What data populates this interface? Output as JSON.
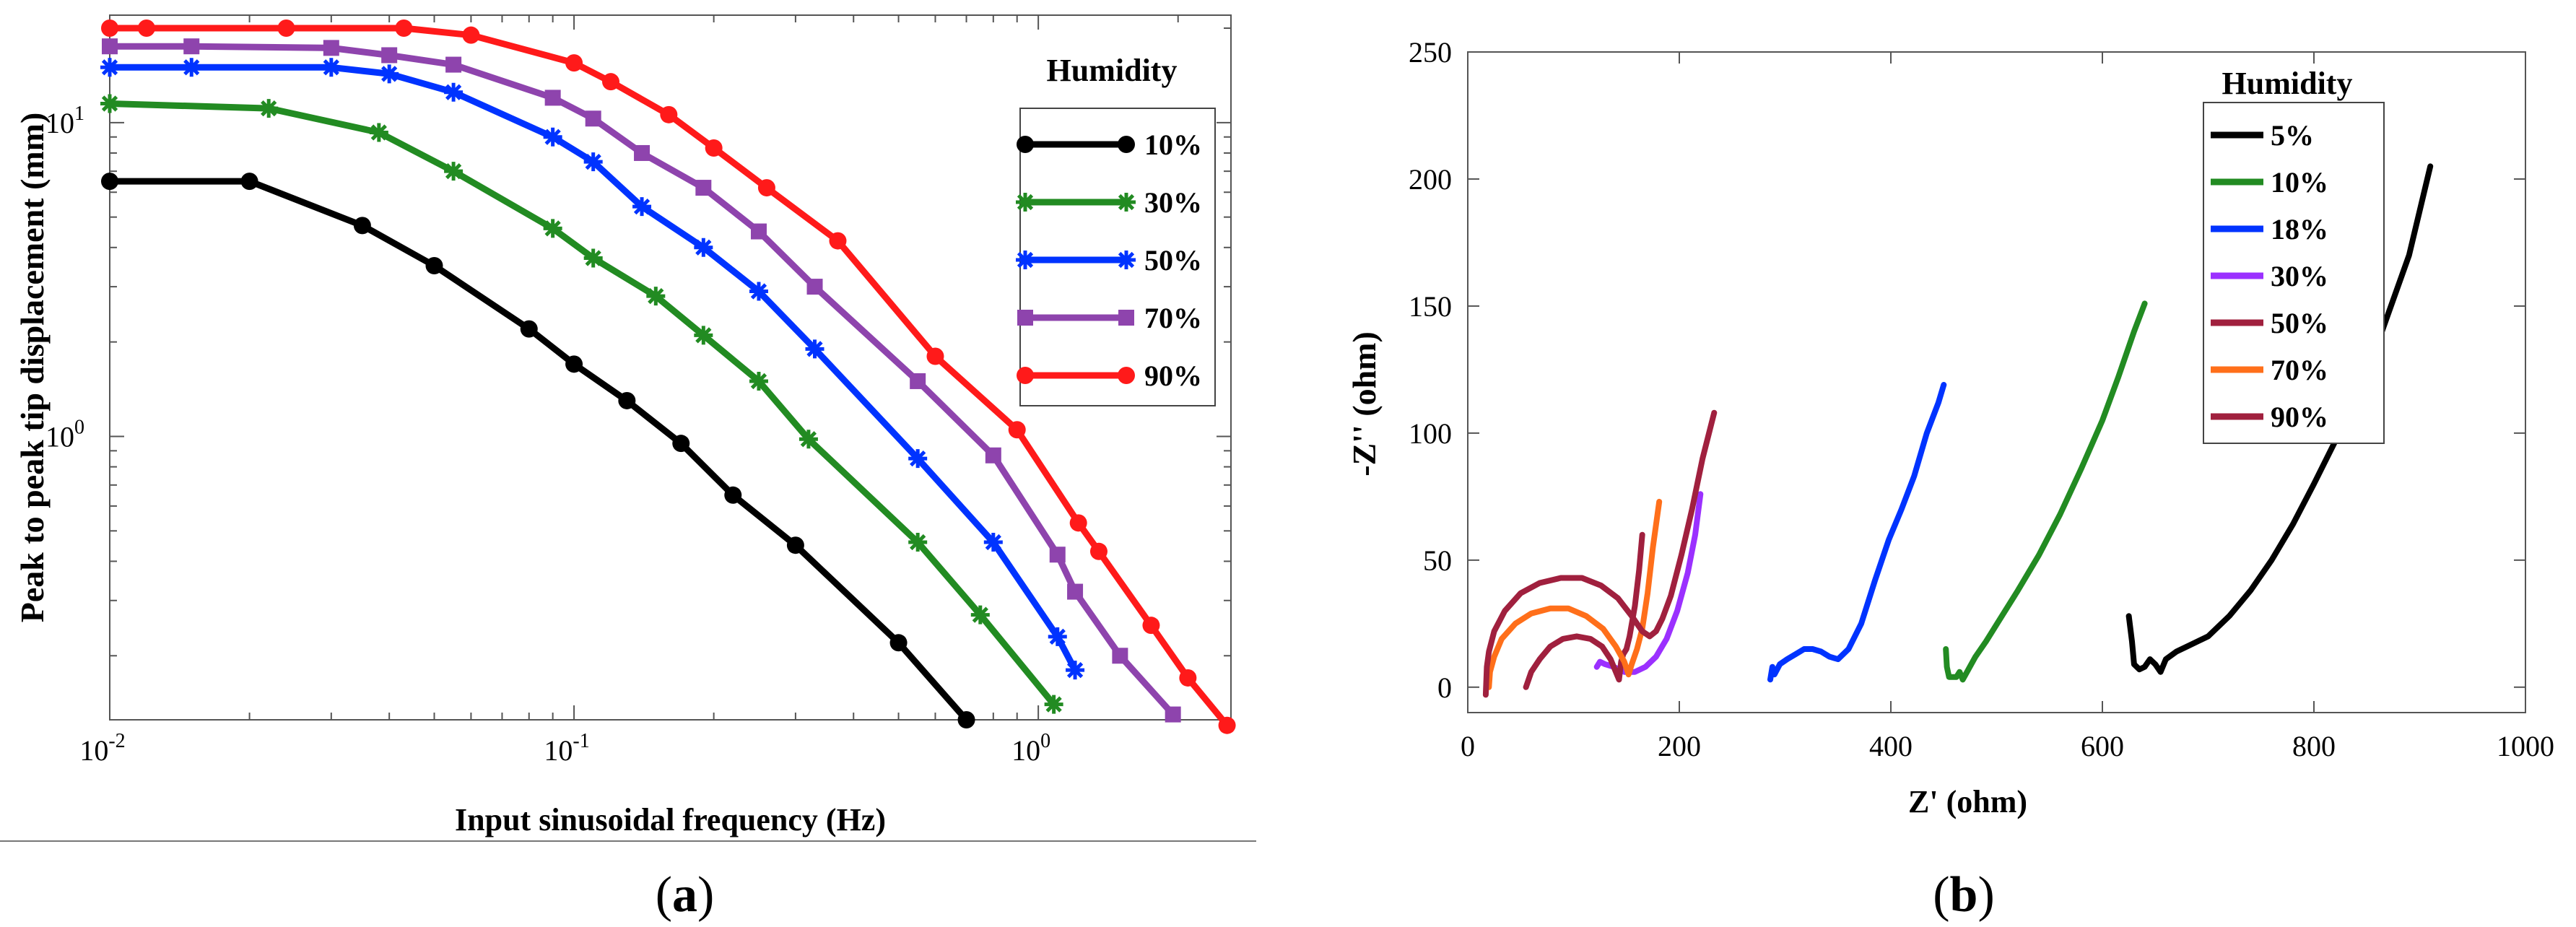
{
  "chart_data": [
    {
      "panel": "a",
      "type": "line",
      "scale": "log-log",
      "caption_open": "(",
      "caption_letter": "a",
      "caption_close": ")",
      "xlabel": "Input sinusoidal frequency (Hz)",
      "ylabel": "Peak to peak tip displacement (mm)",
      "xlim": [
        0.01,
        2.6
      ],
      "ylim": [
        0.125,
        22
      ],
      "x_ticks": [
        {
          "base": "10",
          "exp": "-2",
          "value": 0.01
        },
        {
          "base": "10",
          "exp": "-1",
          "value": 0.1
        },
        {
          "base": "10",
          "exp": "0",
          "value": 1
        }
      ],
      "y_ticks": [
        {
          "base": "10",
          "exp": "0",
          "value": 1
        },
        {
          "base": "10",
          "exp": "1",
          "value": 10
        }
      ],
      "legend_title": "Humidity",
      "series": [
        {
          "name": "10%",
          "color": "#000000",
          "marker": "dot",
          "x": [
            0.01,
            0.02,
            0.035,
            0.05,
            0.08,
            0.1,
            0.13,
            0.17,
            0.22,
            0.3,
            0.5,
            0.7
          ],
          "y": [
            6.5,
            6.5,
            4.7,
            3.5,
            2.2,
            1.7,
            1.3,
            0.95,
            0.65,
            0.45,
            0.22,
            0.125
          ]
        },
        {
          "name": "30%",
          "color": "#228b22",
          "marker": "star",
          "x": [
            0.01,
            0.022,
            0.038,
            0.055,
            0.09,
            0.11,
            0.15,
            0.19,
            0.25,
            0.32,
            0.55,
            0.75,
            1.08
          ],
          "y": [
            11.5,
            11.1,
            9.3,
            7.0,
            4.6,
            3.7,
            2.8,
            2.1,
            1.5,
            0.98,
            0.46,
            0.27,
            0.14
          ]
        },
        {
          "name": "50%",
          "color": "#0033ff",
          "marker": "star",
          "x": [
            0.01,
            0.015,
            0.03,
            0.04,
            0.055,
            0.09,
            0.11,
            0.14,
            0.19,
            0.25,
            0.33,
            0.55,
            0.8,
            1.1,
            1.2
          ],
          "y": [
            15.0,
            15.0,
            15.0,
            14.3,
            12.5,
            9.0,
            7.5,
            5.4,
            4.0,
            2.9,
            1.9,
            0.85,
            0.46,
            0.23,
            0.18
          ]
        },
        {
          "name": "70%",
          "color": "#8e44ad",
          "marker": "square",
          "x": [
            0.01,
            0.015,
            0.03,
            0.04,
            0.055,
            0.09,
            0.11,
            0.14,
            0.19,
            0.25,
            0.33,
            0.55,
            0.8,
            1.1,
            1.2,
            1.5,
            1.95
          ],
          "y": [
            17.5,
            17.5,
            17.3,
            16.4,
            15.3,
            12.0,
            10.3,
            8.0,
            6.2,
            4.5,
            3.0,
            1.5,
            0.87,
            0.42,
            0.32,
            0.2,
            0.13
          ]
        },
        {
          "name": "90%",
          "color": "#ff1a1a",
          "marker": "dot",
          "x": [
            0.01,
            0.012,
            0.024,
            0.043,
            0.06,
            0.1,
            0.12,
            0.16,
            0.2,
            0.26,
            0.37,
            0.6,
            0.9,
            1.22,
            1.35,
            1.75,
            2.1,
            2.55
          ],
          "y": [
            20.0,
            20.0,
            20.0,
            20.0,
            19.0,
            15.5,
            13.5,
            10.6,
            8.3,
            6.2,
            4.2,
            1.8,
            1.05,
            0.53,
            0.43,
            0.25,
            0.17,
            0.12
          ]
        }
      ]
    },
    {
      "panel": "b",
      "type": "line",
      "caption_open": "(",
      "caption_letter": "b",
      "caption_close": ")",
      "xlabel": "Z' (ohm)",
      "ylabel": "-Z'' (ohm)",
      "xlim": [
        0,
        1000
      ],
      "ylim": [
        -10,
        250
      ],
      "x_ticks": [
        0,
        200,
        400,
        600,
        800,
        1000
      ],
      "y_ticks": [
        0,
        50,
        100,
        150,
        200,
        250
      ],
      "legend_title": "Humidity",
      "series": [
        {
          "name": "5%",
          "color": "#000000",
          "x": [
            625,
            628,
            630,
            635,
            640,
            645,
            650,
            655,
            660,
            670,
            680,
            700,
            720,
            740,
            760,
            780,
            800,
            830,
            860,
            890,
            910
          ],
          "y": [
            28,
            18,
            9,
            7,
            8,
            11,
            9,
            6,
            11,
            14,
            16,
            20,
            28,
            38,
            50,
            64,
            80,
            105,
            135,
            170,
            205
          ]
        },
        {
          "name": "10%",
          "color": "#228b22",
          "x": [
            452,
            453,
            455,
            458,
            462,
            465,
            468,
            472,
            480,
            490,
            505,
            520,
            540,
            560,
            580,
            600,
            615,
            630,
            640
          ],
          "y": [
            15,
            8,
            4,
            4,
            4,
            6,
            3,
            6,
            12,
            18,
            28,
            38,
            52,
            68,
            86,
            105,
            122,
            140,
            151
          ]
        },
        {
          "name": "18%",
          "color": "#0033ff",
          "x": [
            286,
            288,
            290,
            295,
            302,
            310,
            318,
            326,
            334,
            342,
            350,
            360,
            372,
            385,
            398,
            410,
            422,
            434,
            445,
            450
          ],
          "y": [
            3,
            8,
            5,
            9,
            11,
            13,
            15,
            15,
            14,
            12,
            11,
            15,
            25,
            42,
            58,
            70,
            83,
            100,
            112,
            119
          ]
        },
        {
          "name": "30%",
          "color": "#9b30ff",
          "x": [
            122,
            125,
            130,
            138,
            148,
            158,
            168,
            178,
            188,
            198,
            208,
            215,
            220
          ],
          "y": [
            8,
            10,
            9,
            8,
            6,
            6,
            8,
            12,
            19,
            30,
            45,
            60,
            76
          ]
        },
        {
          "name": "50%",
          "color": "#a0203e",
          "x": [
            55,
            60,
            68,
            78,
            90,
            103,
            116,
            127,
            135,
            140,
            143,
            145,
            147,
            150,
            153,
            158,
            162,
            165
          ],
          "y": [
            0,
            6,
            11,
            16,
            19,
            20,
            19,
            16,
            11,
            6,
            3,
            10,
            13,
            15,
            20,
            32,
            46,
            60
          ]
        },
        {
          "name": "70%",
          "color": "#ff6f1a",
          "x": [
            20,
            21,
            25,
            32,
            45,
            60,
            78,
            95,
            112,
            128,
            140,
            148,
            152,
            155,
            160,
            165,
            170,
            175,
            181
          ],
          "y": [
            0,
            6,
            12,
            19,
            25,
            29,
            31,
            31,
            28,
            23,
            16,
            10,
            5,
            9,
            15,
            23,
            37,
            55,
            73
          ]
        },
        {
          "name": "90%",
          "color": "#a0203e",
          "x": [
            17,
            18,
            20,
            25,
            35,
            50,
            68,
            88,
            108,
            126,
            142,
            155,
            165,
            172,
            178,
            184,
            192,
            202,
            212,
            222,
            233
          ],
          "y": [
            -3,
            8,
            14,
            22,
            30,
            37,
            41,
            43,
            43,
            40,
            35,
            28,
            22,
            20,
            22,
            27,
            36,
            52,
            70,
            90,
            108
          ]
        }
      ]
    }
  ]
}
